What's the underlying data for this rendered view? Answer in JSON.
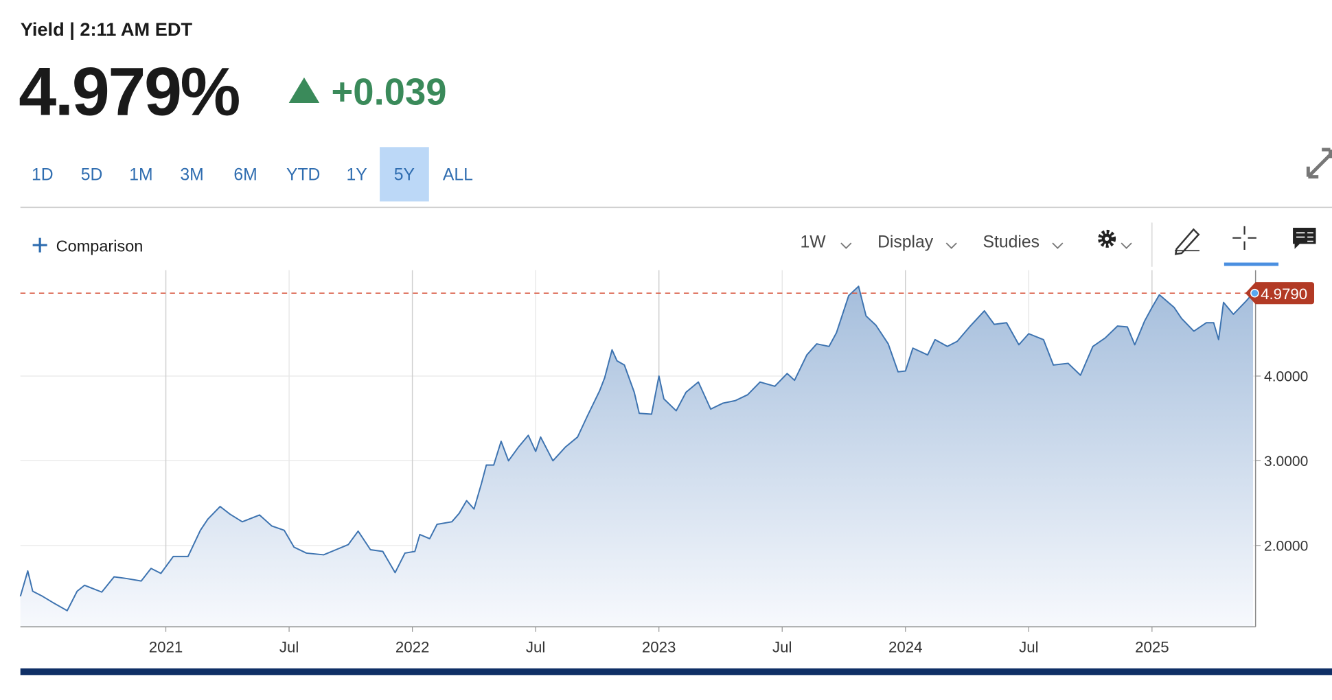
{
  "header": {
    "label": "Yield | 2:11 AM EDT",
    "price": "4.979%",
    "change": "+0.039"
  },
  "ranges": [
    "1D",
    "5D",
    "1M",
    "3M",
    "6M",
    "YTD",
    "1Y",
    "5Y",
    "ALL"
  ],
  "active_range": 7,
  "toolbar": {
    "comparison": "Comparison",
    "interval": "1W",
    "display": "Display",
    "studies": "Studies"
  },
  "chart_data": {
    "type": "area",
    "color": "#3d73b0",
    "x": [
      2020.41,
      2020.44,
      2020.46,
      2020.5,
      2020.54,
      2020.6,
      2020.64,
      2020.67,
      2020.74,
      2020.79,
      2020.84,
      2020.9,
      2020.94,
      2020.98,
      2021.03,
      2021.09,
      2021.14,
      2021.17,
      2021.22,
      2021.26,
      2021.31,
      2021.38,
      2021.43,
      2021.48,
      2021.52,
      2021.57,
      2021.64,
      2021.69,
      2021.74,
      2021.78,
      2021.83,
      2021.88,
      2021.93,
      2021.97,
      2022.01,
      2022.03,
      2022.07,
      2022.1,
      2022.16,
      2022.19,
      2022.22,
      2022.25,
      2022.28,
      2022.3,
      2022.33,
      2022.36,
      2022.39,
      2022.43,
      2022.47,
      2022.5,
      2022.52,
      2022.57,
      2022.62,
      2022.67,
      2022.71,
      2022.76,
      2022.78,
      2022.81,
      2022.83,
      2022.86,
      2022.9,
      2022.92,
      2022.97,
      2023.0,
      2023.02,
      2023.07,
      2023.11,
      2023.16,
      2023.21,
      2023.26,
      2023.31,
      2023.36,
      2023.41,
      2023.47,
      2023.52,
      2023.55,
      2023.6,
      2023.64,
      2023.69,
      2023.72,
      2023.77,
      2023.81,
      2023.84,
      2023.88,
      2023.93,
      2023.97,
      2024.0,
      2024.03,
      2024.09,
      2024.12,
      2024.17,
      2024.21,
      2024.26,
      2024.32,
      2024.36,
      2024.41,
      2024.46,
      2024.5,
      2024.56,
      2024.6,
      2024.66,
      2024.71,
      2024.76,
      2024.81,
      2024.86,
      2024.9,
      2024.93,
      2024.97,
      2025.0,
      2025.03,
      2025.09,
      2025.12,
      2025.17,
      2025.22,
      2025.25,
      2025.27,
      2025.29,
      2025.33,
      2025.38,
      2025.41
    ],
    "values": [
      1.4,
      1.7,
      1.46,
      1.4,
      1.33,
      1.23,
      1.46,
      1.53,
      1.45,
      1.63,
      1.61,
      1.58,
      1.73,
      1.67,
      1.87,
      1.87,
      2.18,
      2.31,
      2.46,
      2.37,
      2.28,
      2.36,
      2.23,
      2.18,
      1.98,
      1.91,
      1.89,
      1.95,
      2.01,
      2.17,
      1.95,
      1.93,
      1.68,
      1.91,
      1.93,
      2.13,
      2.08,
      2.25,
      2.28,
      2.38,
      2.53,
      2.43,
      2.73,
      2.95,
      2.95,
      3.23,
      3.0,
      3.16,
      3.3,
      3.11,
      3.28,
      3.0,
      3.16,
      3.28,
      3.53,
      3.83,
      3.98,
      4.31,
      4.18,
      4.13,
      3.81,
      3.56,
      3.55,
      4.0,
      3.73,
      3.59,
      3.81,
      3.93,
      3.61,
      3.68,
      3.71,
      3.78,
      3.93,
      3.88,
      4.03,
      3.95,
      4.25,
      4.38,
      4.35,
      4.51,
      4.95,
      5.06,
      4.71,
      4.6,
      4.38,
      4.05,
      4.06,
      4.33,
      4.25,
      4.43,
      4.35,
      4.41,
      4.58,
      4.77,
      4.61,
      4.63,
      4.37,
      4.5,
      4.43,
      4.13,
      4.15,
      4.01,
      4.35,
      4.45,
      4.59,
      4.58,
      4.37,
      4.65,
      4.81,
      4.96,
      4.81,
      4.68,
      4.53,
      4.63,
      4.63,
      4.43,
      4.87,
      4.73,
      4.88,
      4.979
    ],
    "xlim": [
      2020.41,
      2025.42
    ],
    "xticks": [
      2021,
      {
        "value": 2021.5,
        "label": "Jul"
      },
      2022,
      {
        "value": 2022.5,
        "label": "Jul"
      },
      2023,
      {
        "value": 2023.5,
        "label": "Jul"
      },
      2024,
      {
        "value": 2024.5,
        "label": "Jul"
      },
      2025
    ],
    "ylim": [
      1.04,
      5.25
    ],
    "yticks": [
      {
        "value": 2,
        "label": "2.0000"
      },
      {
        "value": 3,
        "label": "3.0000"
      },
      {
        "value": 4,
        "label": "4.0000"
      }
    ],
    "grid": true,
    "reference_line": {
      "value": 4.979,
      "label": "4.9790"
    }
  }
}
